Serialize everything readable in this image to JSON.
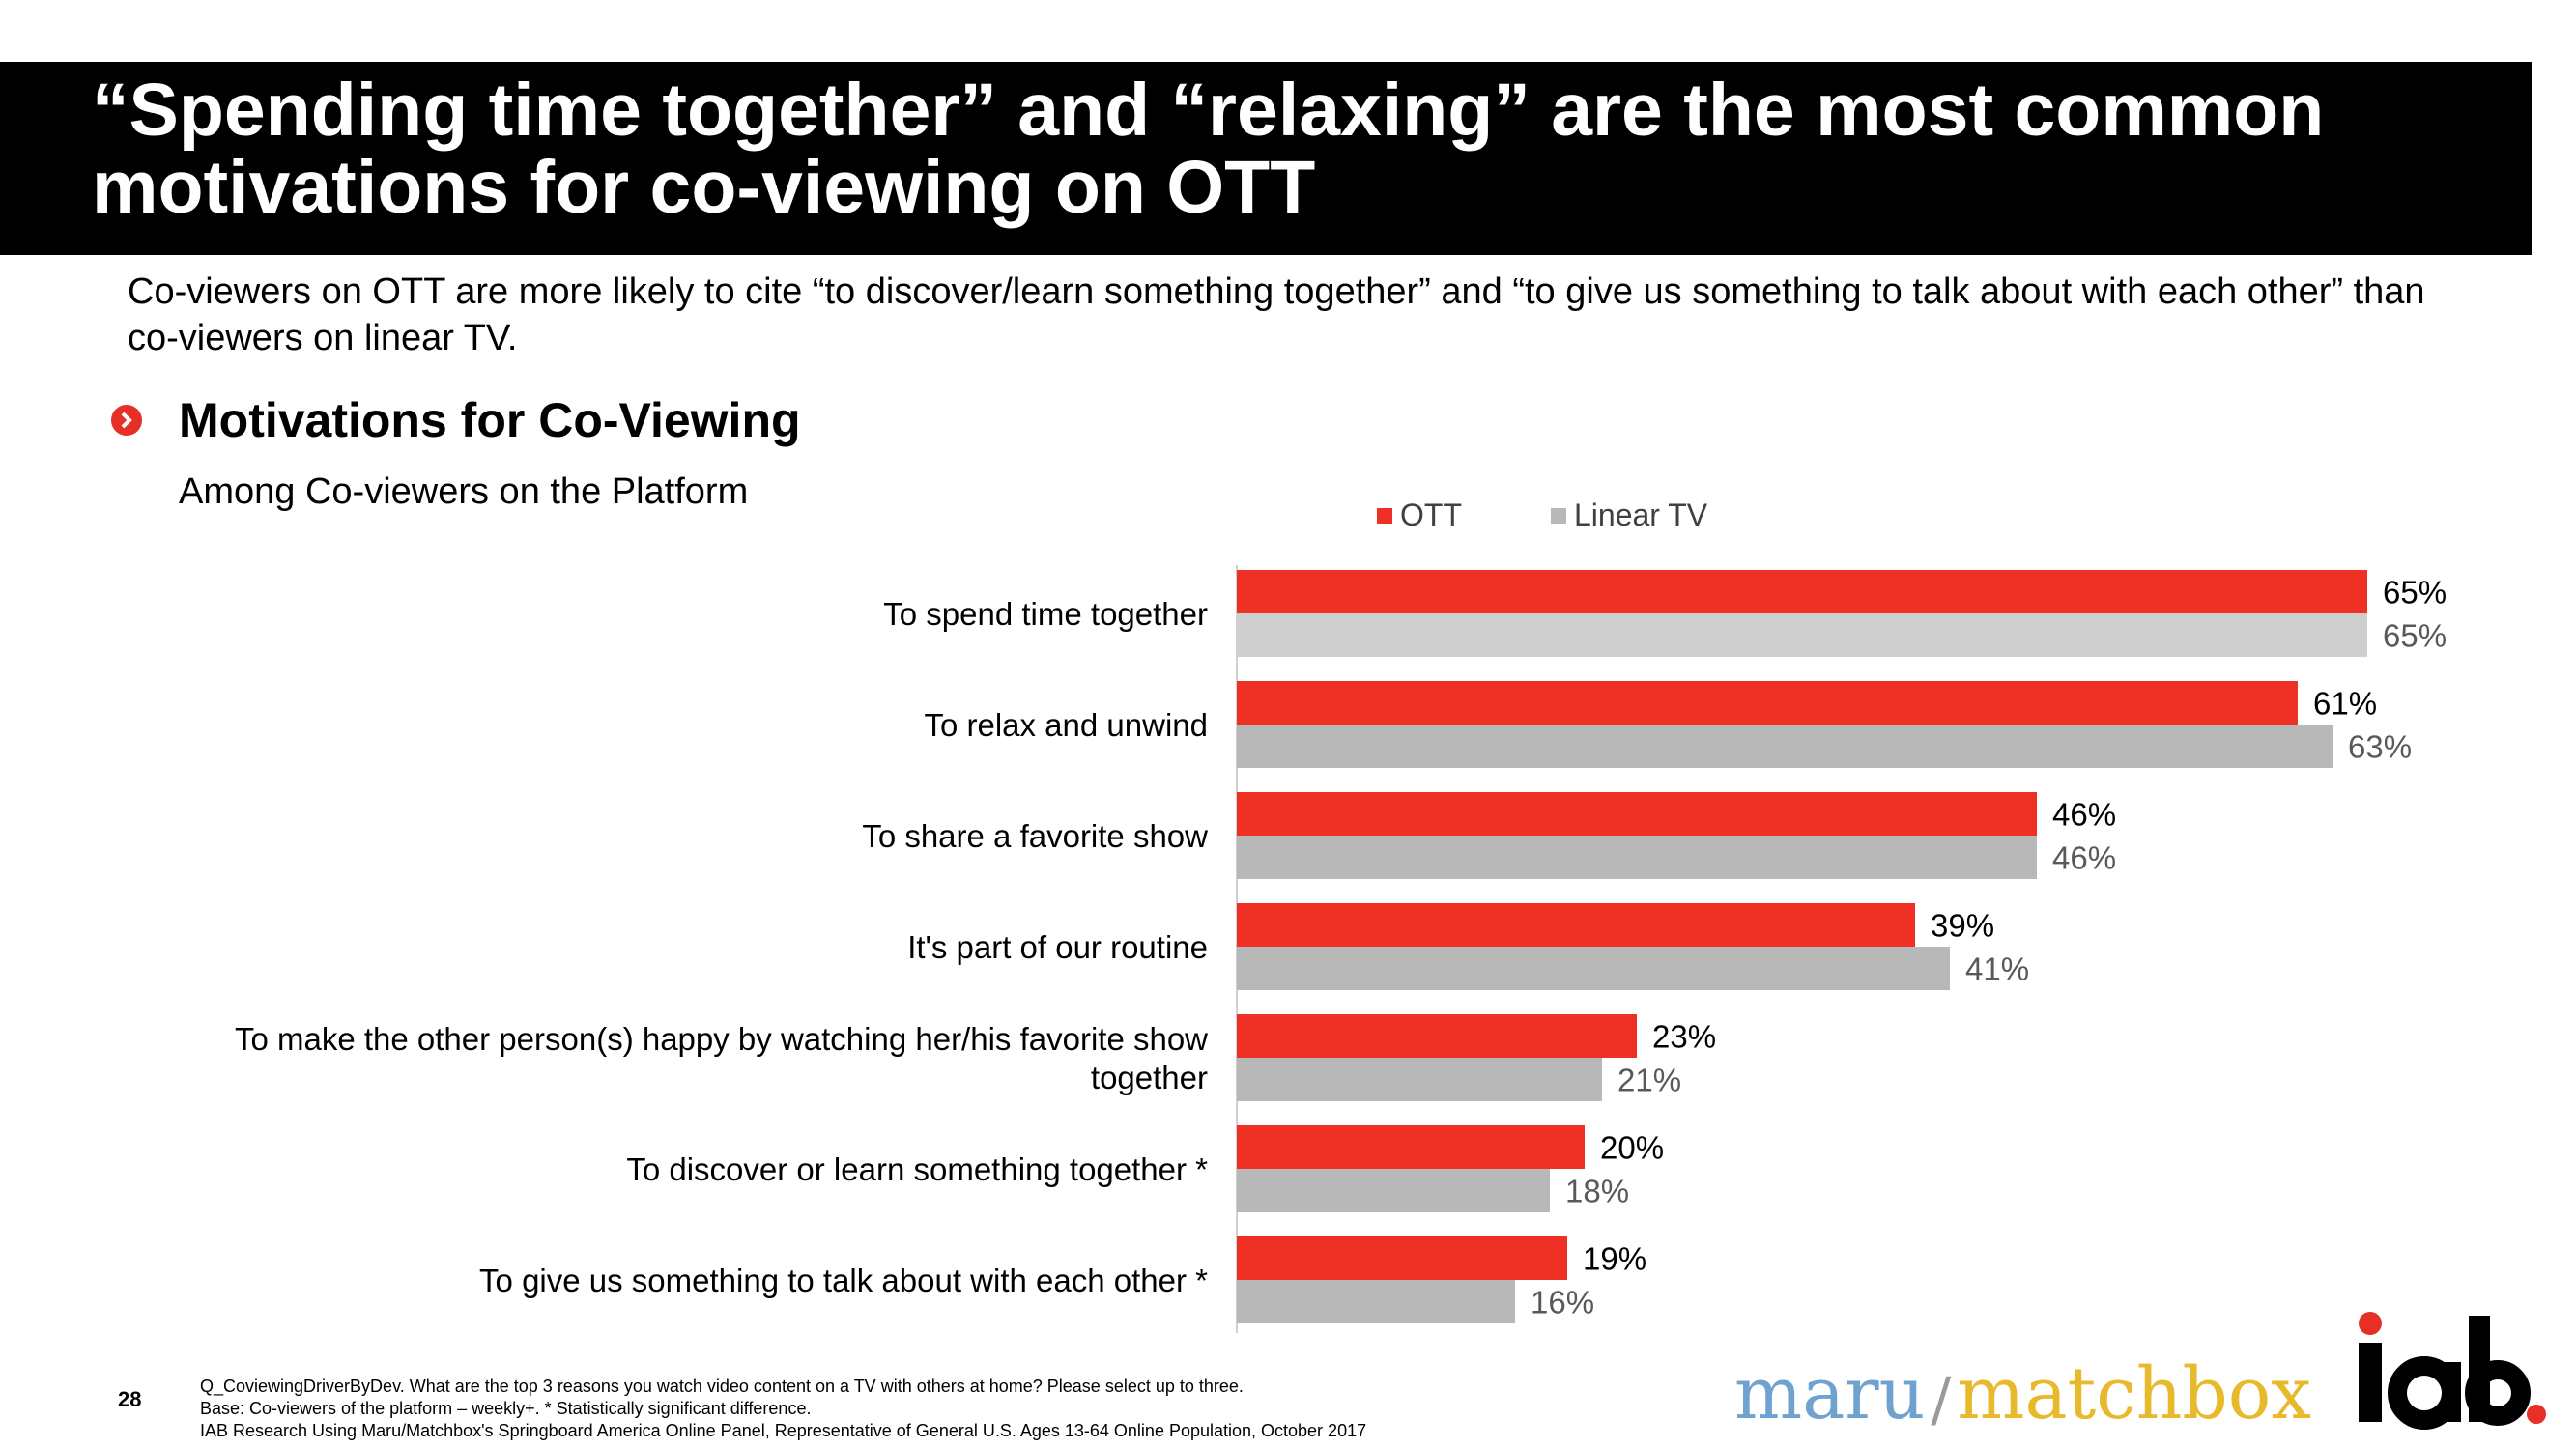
{
  "header": {
    "title_line1": "“Spending time together” and “relaxing” are the most common",
    "title_line2": "motivations for co-viewing on OTT",
    "subtitle_line1": "Co-viewers on OTT are more likely to cite “to discover/learn something together” and “to give us something to talk about with each other” than",
    "subtitle_line2": "co-viewers on linear TV."
  },
  "section": {
    "title": "Motivations for Co-Viewing",
    "among": "Among Co-viewers on the Platform"
  },
  "colors": {
    "ott": "#ee3124",
    "linear": "#b8b8b8",
    "linear_first": "#cfcfcf",
    "accent": "#e63027"
  },
  "chart_data": {
    "type": "bar",
    "orientation": "horizontal",
    "categories": [
      [
        "To spend time together"
      ],
      [
        "To relax and unwind"
      ],
      [
        "To share a favorite show"
      ],
      [
        "It's part of our routine"
      ],
      [
        "To make the other person(s) happy by watching her/his favorite show",
        "together"
      ],
      [
        "To discover or learn something together *"
      ],
      [
        "To give us something to talk about with each other *"
      ]
    ],
    "series": [
      {
        "name": "OTT",
        "values": [
          65,
          61,
          46,
          39,
          23,
          20,
          19
        ],
        "labels": [
          "65%",
          "61%",
          "46%",
          "39%",
          "23%",
          "20%",
          "19%"
        ]
      },
      {
        "name": "Linear TV",
        "values": [
          65,
          63,
          46,
          41,
          21,
          18,
          16
        ],
        "labels": [
          "65%",
          "63%",
          "46%",
          "41%",
          "21%",
          "18%",
          "16%"
        ]
      }
    ],
    "legend_position": "top",
    "xlim": [
      0,
      70
    ],
    "grid": false
  },
  "footer": {
    "page_number": "28",
    "note1": "Q_CoviewingDriverByDev. What are the top 3 reasons you watch video content on a TV with others at home? Please select up to three.",
    "note2": "Base: Co-viewers of the platform – weekly+. * Statistically significant difference.",
    "note3": "IAB Research Using Maru/Matchbox's Springboard America Online Panel, Representative of General U.S. Ages 13-64 Online Population, October 2017"
  },
  "logos": {
    "maru": "maru",
    "slash": "/",
    "matchbox": "matchbox",
    "iab": "iab"
  }
}
